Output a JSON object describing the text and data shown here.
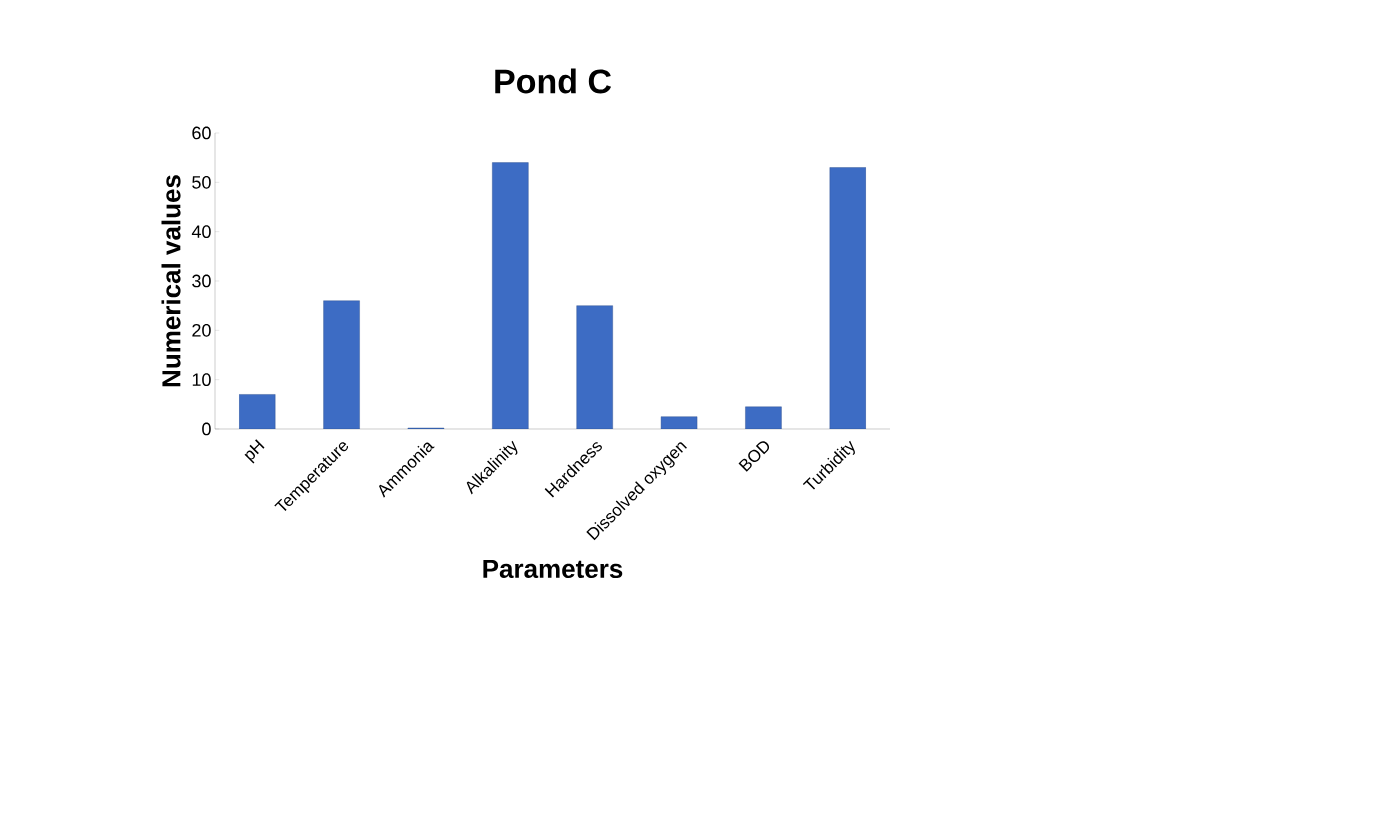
{
  "chart_data": {
    "type": "bar",
    "title": "Pond C",
    "xlabel": "Parameters",
    "ylabel": "Numerical values",
    "categories": [
      "pH",
      "Temperature",
      "Ammonia",
      "Alkalinity",
      "Hardness",
      "Dissolved oxygen",
      "BOD",
      "Turbidity"
    ],
    "values": [
      7,
      26,
      0.2,
      54,
      25,
      2.5,
      4.5,
      53
    ],
    "color": "#3d6cc4",
    "ylim": [
      0,
      60
    ],
    "yticks": [
      0,
      10,
      20,
      30,
      40,
      50,
      60
    ]
  }
}
